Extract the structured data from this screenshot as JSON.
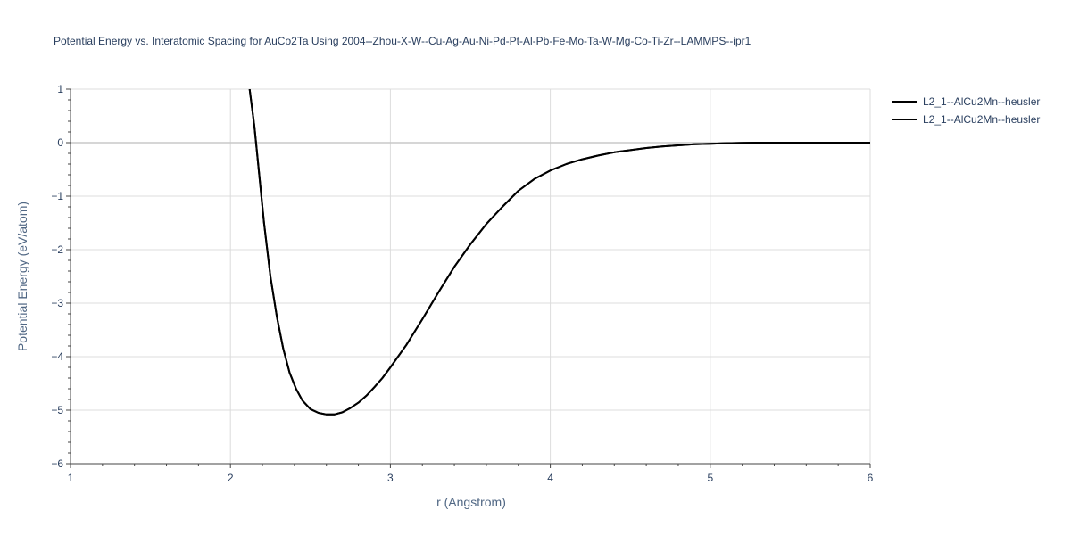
{
  "chart_data": {
    "type": "line",
    "title": "Potential Energy vs. Interatomic Spacing for AuCo2Ta Using 2004--Zhou-X-W--Cu-Ag-Au-Ni-Pd-Pt-Al-Pb-Fe-Mo-Ta-W-Mg-Co-Ti-Zr--LAMMPS--ipr1",
    "xlabel": "r (Angstrom)",
    "ylabel": "Potential Energy (eV/atom)",
    "xlim": [
      1,
      6
    ],
    "ylim": [
      -6,
      1
    ],
    "xticks": [
      1,
      2,
      3,
      4,
      5,
      6
    ],
    "yticks": [
      1,
      0,
      -1,
      -2,
      -3,
      -4,
      -5,
      -6
    ],
    "xtick_labels": [
      "1",
      "2",
      "3",
      "4",
      "5",
      "6"
    ],
    "ytick_labels": [
      "1",
      "0",
      "−1",
      "−2",
      "−3",
      "−4",
      "−5",
      "−6"
    ],
    "grid": true,
    "legend_position": "top-right",
    "series": [
      {
        "name": "L2_1--AlCu2Mn--heusler",
        "color": "#000000",
        "x": [
          2.12,
          2.15,
          2.18,
          2.21,
          2.25,
          2.29,
          2.33,
          2.37,
          2.41,
          2.45,
          2.5,
          2.55,
          2.6,
          2.65,
          2.7,
          2.75,
          2.8,
          2.85,
          2.9,
          2.95,
          3.0,
          3.1,
          3.2,
          3.3,
          3.4,
          3.5,
          3.6,
          3.7,
          3.8,
          3.9,
          4.0,
          4.1,
          4.2,
          4.3,
          4.4,
          4.5,
          4.6,
          4.7,
          4.8,
          4.9,
          5.0,
          5.1,
          5.2,
          5.3,
          5.5,
          5.75,
          6.0
        ],
        "y": [
          1.0,
          0.3,
          -0.6,
          -1.5,
          -2.5,
          -3.25,
          -3.85,
          -4.3,
          -4.6,
          -4.82,
          -4.98,
          -5.05,
          -5.08,
          -5.08,
          -5.04,
          -4.96,
          -4.86,
          -4.73,
          -4.57,
          -4.4,
          -4.2,
          -3.78,
          -3.3,
          -2.8,
          -2.32,
          -1.9,
          -1.52,
          -1.2,
          -0.9,
          -0.68,
          -0.52,
          -0.4,
          -0.31,
          -0.24,
          -0.18,
          -0.14,
          -0.1,
          -0.07,
          -0.05,
          -0.03,
          -0.02,
          -0.01,
          -0.005,
          0.0,
          0.0,
          0.0,
          0.0
        ]
      },
      {
        "name": "L2_1--AlCu2Mn--heusler",
        "color": "#000000",
        "x": [
          2.12,
          2.15,
          2.18,
          2.21,
          2.25,
          2.29,
          2.33,
          2.37,
          2.41,
          2.45,
          2.5,
          2.55,
          2.6,
          2.65,
          2.7,
          2.75,
          2.8,
          2.85,
          2.9,
          2.95,
          3.0,
          3.1,
          3.2,
          3.3,
          3.4,
          3.5,
          3.6,
          3.7,
          3.8,
          3.9,
          4.0,
          4.1,
          4.2,
          4.3,
          4.4,
          4.5,
          4.6,
          4.7,
          4.8,
          4.9,
          5.0,
          5.1,
          5.2,
          5.3,
          5.5,
          5.75,
          6.0
        ],
        "y": [
          1.0,
          0.3,
          -0.6,
          -1.5,
          -2.5,
          -3.25,
          -3.85,
          -4.3,
          -4.6,
          -4.82,
          -4.98,
          -5.05,
          -5.08,
          -5.08,
          -5.04,
          -4.96,
          -4.86,
          -4.73,
          -4.57,
          -4.4,
          -4.2,
          -3.78,
          -3.3,
          -2.8,
          -2.32,
          -1.9,
          -1.52,
          -1.2,
          -0.9,
          -0.68,
          -0.52,
          -0.4,
          -0.31,
          -0.24,
          -0.18,
          -0.14,
          -0.1,
          -0.07,
          -0.05,
          -0.03,
          -0.02,
          -0.01,
          -0.005,
          0.0,
          0.0,
          0.0,
          0.0
        ]
      }
    ]
  }
}
